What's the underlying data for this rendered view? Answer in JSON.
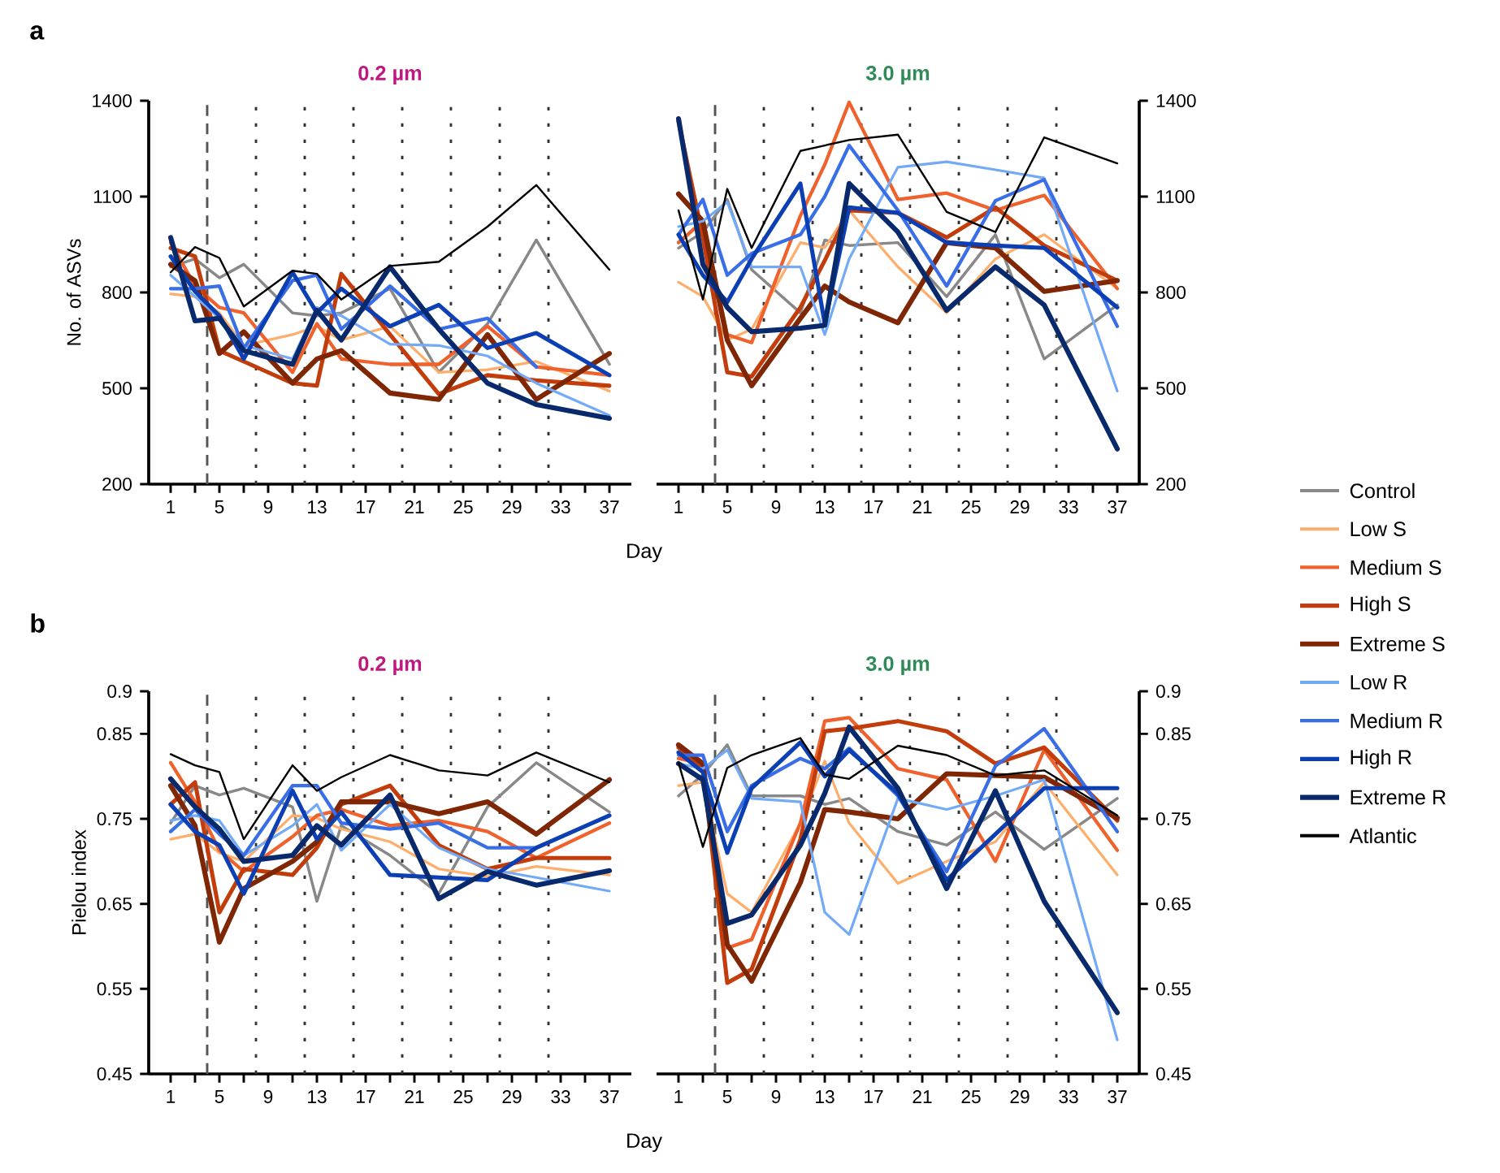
{
  "chart_data": [
    {
      "type": "line",
      "title": "0.2 µm",
      "xlabel": "Day",
      "ylabel": "No. of ASVs",
      "annotations": [
        "a"
      ],
      "legend": "right",
      "x": [
        1,
        3,
        5,
        7,
        11,
        13,
        15,
        19,
        23,
        27,
        31,
        37
      ],
      "xlim": [
        -0.8,
        38.8
      ],
      "xticks": [
        1,
        {
          "value": 3,
          "label": null
        },
        5,
        {
          "value": 7,
          "label": null
        },
        9,
        {
          "value": 11,
          "label": null
        },
        13,
        {
          "value": 15,
          "label": null
        },
        17,
        {
          "value": 19,
          "label": null
        },
        21,
        {
          "value": 23,
          "label": null
        },
        25,
        {
          "value": 27,
          "label": null
        },
        29,
        {
          "value": 31,
          "label": null
        },
        33,
        {
          "value": 35,
          "label": null
        },
        37
      ],
      "ylim": [
        200,
        1400
      ],
      "yticks": [
        200,
        500,
        800,
        1100,
        1400
      ],
      "ref_lines": [
        {
          "axis": "x",
          "value": 4,
          "line_style": "dashed",
          "color": "#555555"
        },
        {
          "axis": "x",
          "value": 8,
          "line_style": "dotted",
          "color": "#333333"
        },
        {
          "axis": "x",
          "value": 12,
          "line_style": "dotted",
          "color": "#333333"
        },
        {
          "axis": "x",
          "value": 16,
          "line_style": "dotted",
          "color": "#333333"
        },
        {
          "axis": "x",
          "value": 20,
          "line_style": "dotted",
          "color": "#333333"
        },
        {
          "axis": "x",
          "value": 24,
          "line_style": "dotted",
          "color": "#333333"
        },
        {
          "axis": "x",
          "value": 28,
          "line_style": "dotted",
          "color": "#333333"
        },
        {
          "axis": "x",
          "value": 32,
          "line_style": "dotted",
          "color": "#333333"
        }
      ],
      "series": [
        {
          "name": "Control",
          "color": "#888888",
          "values": [
            880,
            905,
            846,
            888,
            736,
            727,
            736,
            812,
            550,
            702,
            964,
            575
          ]
        },
        {
          "name": "Low S",
          "color": "#fdae6b",
          "values": [
            795,
            787,
            736,
            634,
            668,
            694,
            651,
            694,
            550,
            558,
            584,
            491
          ]
        },
        {
          "name": "Medium S",
          "color": "#f0622d",
          "values": [
            956,
            820,
            753,
            736,
            550,
            702,
            592,
            575,
            575,
            694,
            567,
            541
          ]
        },
        {
          "name": "High S",
          "color": "#c23d0b",
          "values": [
            939,
            913,
            618,
            584,
            516,
            508,
            858,
            668,
            482,
            541,
            525,
            508
          ]
        },
        {
          "name": "Extreme S",
          "color": "#7f2704",
          "values": [
            888,
            837,
            609,
            677,
            516,
            592,
            618,
            485,
            465,
            668,
            465,
            609
          ]
        },
        {
          "name": "Low R",
          "color": "#72aaf7",
          "values": [
            854,
            787,
            719,
            634,
            592,
            753,
            727,
            638,
            634,
            601,
            516,
            415
          ]
        },
        {
          "name": "Medium R",
          "color": "#3a6ee6",
          "values": [
            812,
            812,
            820,
            626,
            837,
            854,
            685,
            820,
            685,
            719,
            567,
            null
          ]
        },
        {
          "name": "High R",
          "color": "#0b3fb3",
          "values": [
            913,
            803,
            727,
            592,
            863,
            736,
            812,
            694,
            761,
            626,
            673,
            541
          ]
        },
        {
          "name": "Extreme R",
          "color": "#08296b",
          "values": [
            972,
            711,
            719,
            618,
            575,
            744,
            651,
            880,
            685,
            516,
            449,
            406
          ]
        },
        {
          "name": "Atlantic",
          "color": "#000000",
          "values": [
            863,
            942,
            908,
            756,
            868,
            858,
            778,
            883,
            896,
            1006,
            1136,
            871
          ]
        }
      ]
    },
    {
      "type": "line",
      "title": "3.0 µm",
      "x": [
        1,
        3,
        5,
        7,
        11,
        13,
        15,
        19,
        23,
        27,
        31,
        37
      ],
      "xlim": [
        -0.8,
        38.8
      ],
      "xticks": [
        1,
        {
          "value": 3,
          "label": null
        },
        5,
        {
          "value": 7,
          "label": null
        },
        9,
        {
          "value": 11,
          "label": null
        },
        13,
        {
          "value": 15,
          "label": null
        },
        17,
        {
          "value": 19,
          "label": null
        },
        21,
        {
          "value": 23,
          "label": null
        },
        25,
        {
          "value": 27,
          "label": null
        },
        29,
        {
          "value": 31,
          "label": null
        },
        33,
        {
          "value": 35,
          "label": null
        },
        37
      ],
      "ylim": [
        200,
        1400
      ],
      "yticks": [
        200,
        500,
        800,
        1100,
        1400
      ],
      "ref_lines": [
        {
          "axis": "x",
          "value": 4,
          "line_style": "dashed",
          "color": "#555555"
        },
        {
          "axis": "x",
          "value": 8,
          "line_style": "dotted",
          "color": "#333333"
        },
        {
          "axis": "x",
          "value": 12,
          "line_style": "dotted",
          "color": "#333333"
        },
        {
          "axis": "x",
          "value": 16,
          "line_style": "dotted",
          "color": "#333333"
        },
        {
          "axis": "x",
          "value": 20,
          "line_style": "dotted",
          "color": "#333333"
        },
        {
          "axis": "x",
          "value": 24,
          "line_style": "dotted",
          "color": "#333333"
        },
        {
          "axis": "x",
          "value": 28,
          "line_style": "dotted",
          "color": "#333333"
        },
        {
          "axis": "x",
          "value": 32,
          "line_style": "dotted",
          "color": "#333333"
        }
      ],
      "series": [
        {
          "color": "#888888",
          "values": [
            939,
            989,
            1091,
            871,
            736,
            964,
            947,
            956,
            787,
            981,
            592,
            761
          ]
        },
        {
          "color": "#fdae6b",
          "values": [
            832,
            787,
            651,
            685,
            956,
            940,
            1057,
            880,
            736,
            905,
            981,
            812
          ]
        },
        {
          "color": "#f0622d",
          "values": [
            956,
            1023,
            668,
            643,
            1040,
            1200,
            1395,
            1091,
            1111,
            1057,
            1104,
            812
          ]
        },
        {
          "color": "#c23d0b",
          "values": [
            1336,
            972,
            550,
            537,
            753,
            900,
            1057,
            1049,
            972,
            1066,
            947,
            837
          ]
        },
        {
          "color": "#7f2704",
          "values": [
            1108,
            1023,
            651,
            508,
            719,
            820,
            770,
            705,
            956,
            939,
            803,
            837
          ]
        },
        {
          "color": "#72aaf7",
          "values": [
            1006,
            1023,
            1083,
            880,
            880,
            668,
            905,
            1192,
            1209,
            1184,
            1158,
            491
          ]
        },
        {
          "color": "#3a6ee6",
          "values": [
            981,
            1091,
            854,
            922,
            981,
            1100,
            1260,
            1057,
            820,
            1087,
            1153,
            694
          ]
        },
        {
          "color": "#0b3fb3",
          "values": [
            981,
            854,
            770,
            905,
            1141,
            702,
            1066,
            1049,
            956,
            947,
            939,
            753
          ]
        },
        {
          "color": "#08296b",
          "values": [
            1344,
            888,
            753,
            677,
            688,
            697,
            1141,
            989,
            744,
            880,
            761,
            310
          ]
        },
        {
          "color": "#000000",
          "values": [
            1057,
            778,
            1124,
            939,
            1243,
            1260,
            1277,
            1294,
            1052,
            989,
            1285,
            1204
          ]
        }
      ]
    },
    {
      "type": "line",
      "title": "0.2 µm",
      "xlabel": "Day",
      "ylabel": "Pielou index",
      "annotations": [
        "b"
      ],
      "x": [
        1,
        3,
        5,
        7,
        11,
        13,
        15,
        19,
        23,
        27,
        31,
        37
      ],
      "xlim": [
        -0.8,
        38.8
      ],
      "xticks": [
        1,
        {
          "value": 3,
          "label": null
        },
        5,
        {
          "value": 7,
          "label": null
        },
        9,
        {
          "value": 11,
          "label": null
        },
        13,
        {
          "value": 15,
          "label": null
        },
        17,
        {
          "value": 19,
          "label": null
        },
        21,
        {
          "value": 23,
          "label": null
        },
        25,
        {
          "value": 27,
          "label": null
        },
        29,
        {
          "value": 31,
          "label": null
        },
        33,
        {
          "value": 35,
          "label": null
        },
        37
      ],
      "ylim": [
        0.45,
        0.9
      ],
      "yticks": [
        0.45,
        0.55,
        0.65,
        0.75,
        0.85,
        0.9
      ],
      "ref_lines": [
        {
          "axis": "x",
          "value": 4,
          "line_style": "dashed",
          "color": "#555555"
        },
        {
          "axis": "x",
          "value": 8,
          "line_style": "dotted",
          "color": "#333333"
        },
        {
          "axis": "x",
          "value": 12,
          "line_style": "dotted",
          "color": "#333333"
        },
        {
          "axis": "x",
          "value": 16,
          "line_style": "dotted",
          "color": "#333333"
        },
        {
          "axis": "x",
          "value": 20,
          "line_style": "dotted",
          "color": "#333333"
        },
        {
          "axis": "x",
          "value": 24,
          "line_style": "dotted",
          "color": "#333333"
        },
        {
          "axis": "x",
          "value": 28,
          "line_style": "dotted",
          "color": "#333333"
        },
        {
          "axis": "x",
          "value": 32,
          "line_style": "dotted",
          "color": "#333333"
        }
      ],
      "series": [
        {
          "color": "#888888",
          "values": [
            0.745,
            0.789,
            0.778,
            0.786,
            0.764,
            0.653,
            0.742,
            0.707,
            0.662,
            0.764,
            0.816,
            0.758
          ]
        },
        {
          "color": "#fdae6b",
          "values": [
            0.726,
            0.732,
            0.71,
            0.7,
            0.754,
            0.751,
            0.738,
            0.723,
            0.691,
            0.682,
            0.694,
            0.684
          ]
        },
        {
          "color": "#f0622d",
          "values": [
            0.816,
            0.77,
            0.713,
            0.688,
            0.729,
            0.754,
            0.761,
            0.742,
            0.748,
            0.735,
            0.704,
            0.745
          ]
        },
        {
          "color": "#c23d0b",
          "values": [
            0.767,
            0.793,
            0.64,
            0.691,
            0.684,
            0.716,
            0.767,
            0.789,
            0.719,
            0.691,
            0.704,
            0.704
          ]
        },
        {
          "color": "#7f2704",
          "values": [
            0.789,
            0.742,
            0.605,
            0.668,
            0.7,
            0.723,
            0.77,
            0.77,
            0.756,
            0.77,
            0.732,
            0.796
          ]
        },
        {
          "color": "#72aaf7",
          "values": [
            0.748,
            0.754,
            0.748,
            0.707,
            0.742,
            0.767,
            0.713,
            0.767,
            0.716,
            0.691,
            0.681,
            0.665
          ]
        },
        {
          "color": "#3a6ee6",
          "values": [
            0.735,
            0.761,
            0.732,
            0.707,
            0.789,
            0.789,
            0.745,
            0.738,
            0.745,
            0.716,
            0.716,
            null
          ]
        },
        {
          "color": "#0b3fb3",
          "values": [
            0.767,
            0.735,
            0.719,
            0.662,
            0.783,
            0.726,
            0.758,
            0.684,
            0.681,
            0.678,
            0.716,
            0.754
          ]
        },
        {
          "color": "#08296b",
          "values": [
            0.797,
            0.764,
            0.738,
            0.7,
            0.707,
            0.742,
            0.719,
            0.778,
            0.656,
            0.688,
            0.672,
            0.689
          ]
        },
        {
          "color": "#000000",
          "values": [
            0.826,
            0.813,
            0.805,
            0.726,
            0.813,
            0.783,
            0.799,
            0.825,
            0.807,
            0.801,
            0.828,
            0.793
          ]
        }
      ]
    },
    {
      "type": "line",
      "title": "3.0 µm",
      "x": [
        1,
        3,
        5,
        7,
        11,
        13,
        15,
        19,
        23,
        27,
        31,
        37
      ],
      "xlim": [
        -0.8,
        38.8
      ],
      "xticks": [
        1,
        {
          "value": 3,
          "label": null
        },
        5,
        {
          "value": 7,
          "label": null
        },
        9,
        {
          "value": 11,
          "label": null
        },
        13,
        {
          "value": 15,
          "label": null
        },
        17,
        {
          "value": 19,
          "label": null
        },
        21,
        {
          "value": 23,
          "label": null
        },
        25,
        {
          "value": 27,
          "label": null
        },
        29,
        {
          "value": 31,
          "label": null
        },
        33,
        {
          "value": 35,
          "label": null
        },
        37
      ],
      "ylim": [
        0.45,
        0.9
      ],
      "yticks": [
        0.45,
        0.55,
        0.65,
        0.75,
        0.85,
        0.9
      ],
      "ref_lines": [
        {
          "axis": "x",
          "value": 4,
          "line_style": "dashed",
          "color": "#555555"
        },
        {
          "axis": "x",
          "value": 8,
          "line_style": "dotted",
          "color": "#333333"
        },
        {
          "axis": "x",
          "value": 12,
          "line_style": "dotted",
          "color": "#333333"
        },
        {
          "axis": "x",
          "value": 16,
          "line_style": "dotted",
          "color": "#333333"
        },
        {
          "axis": "x",
          "value": 20,
          "line_style": "dotted",
          "color": "#333333"
        },
        {
          "axis": "x",
          "value": 24,
          "line_style": "dotted",
          "color": "#333333"
        },
        {
          "axis": "x",
          "value": 28,
          "line_style": "dotted",
          "color": "#333333"
        },
        {
          "axis": "x",
          "value": 32,
          "line_style": "dotted",
          "color": "#333333"
        }
      ],
      "series": [
        {
          "color": "#888888",
          "values": [
            0.777,
            0.802,
            0.837,
            0.777,
            0.777,
            0.767,
            0.774,
            0.735,
            0.719,
            0.758,
            0.714,
            0.774
          ]
        },
        {
          "color": "#fdae6b",
          "values": [
            0.789,
            0.793,
            0.662,
            0.64,
            0.745,
            0.818,
            0.745,
            0.674,
            0.7,
            0.723,
            0.793,
            0.684
          ]
        },
        {
          "color": "#f0622d",
          "values": [
            0.821,
            0.815,
            0.598,
            0.608,
            0.745,
            0.865,
            0.869,
            0.809,
            0.796,
            0.7,
            0.831,
            0.713
          ]
        },
        {
          "color": "#c23d0b",
          "values": [
            0.834,
            0.809,
            0.557,
            0.573,
            0.726,
            0.853,
            0.856,
            0.865,
            0.853,
            0.815,
            0.834,
            0.748
          ]
        },
        {
          "color": "#7f2704",
          "values": [
            0.837,
            0.815,
            0.602,
            0.559,
            0.675,
            0.761,
            0.758,
            0.75,
            0.803,
            0.801,
            0.799,
            0.751
          ]
        },
        {
          "color": "#72aaf7",
          "values": [
            0.815,
            0.809,
            0.831,
            0.774,
            0.77,
            0.64,
            0.614,
            0.774,
            0.761,
            0.777,
            0.796,
            0.49
          ]
        },
        {
          "color": "#3a6ee6",
          "values": [
            0.825,
            0.825,
            0.735,
            0.789,
            0.821,
            0.809,
            0.833,
            0.777,
            0.688,
            0.812,
            0.856,
            0.735
          ]
        },
        {
          "color": "#0b3fb3",
          "values": [
            0.828,
            0.805,
            0.71,
            0.786,
            0.84,
            0.8,
            0.831,
            0.78,
            0.678,
            0.732,
            0.786,
            0.786
          ]
        },
        {
          "color": "#08296b",
          "values": [
            0.815,
            0.796,
            0.627,
            0.637,
            0.719,
            0.78,
            0.858,
            0.786,
            0.668,
            0.783,
            0.653,
            0.522
          ]
        },
        {
          "color": "#000000",
          "values": [
            0.816,
            0.717,
            0.81,
            0.825,
            0.845,
            0.802,
            0.797,
            0.836,
            0.825,
            0.801,
            0.807,
            0.754
          ]
        }
      ]
    }
  ]
}
